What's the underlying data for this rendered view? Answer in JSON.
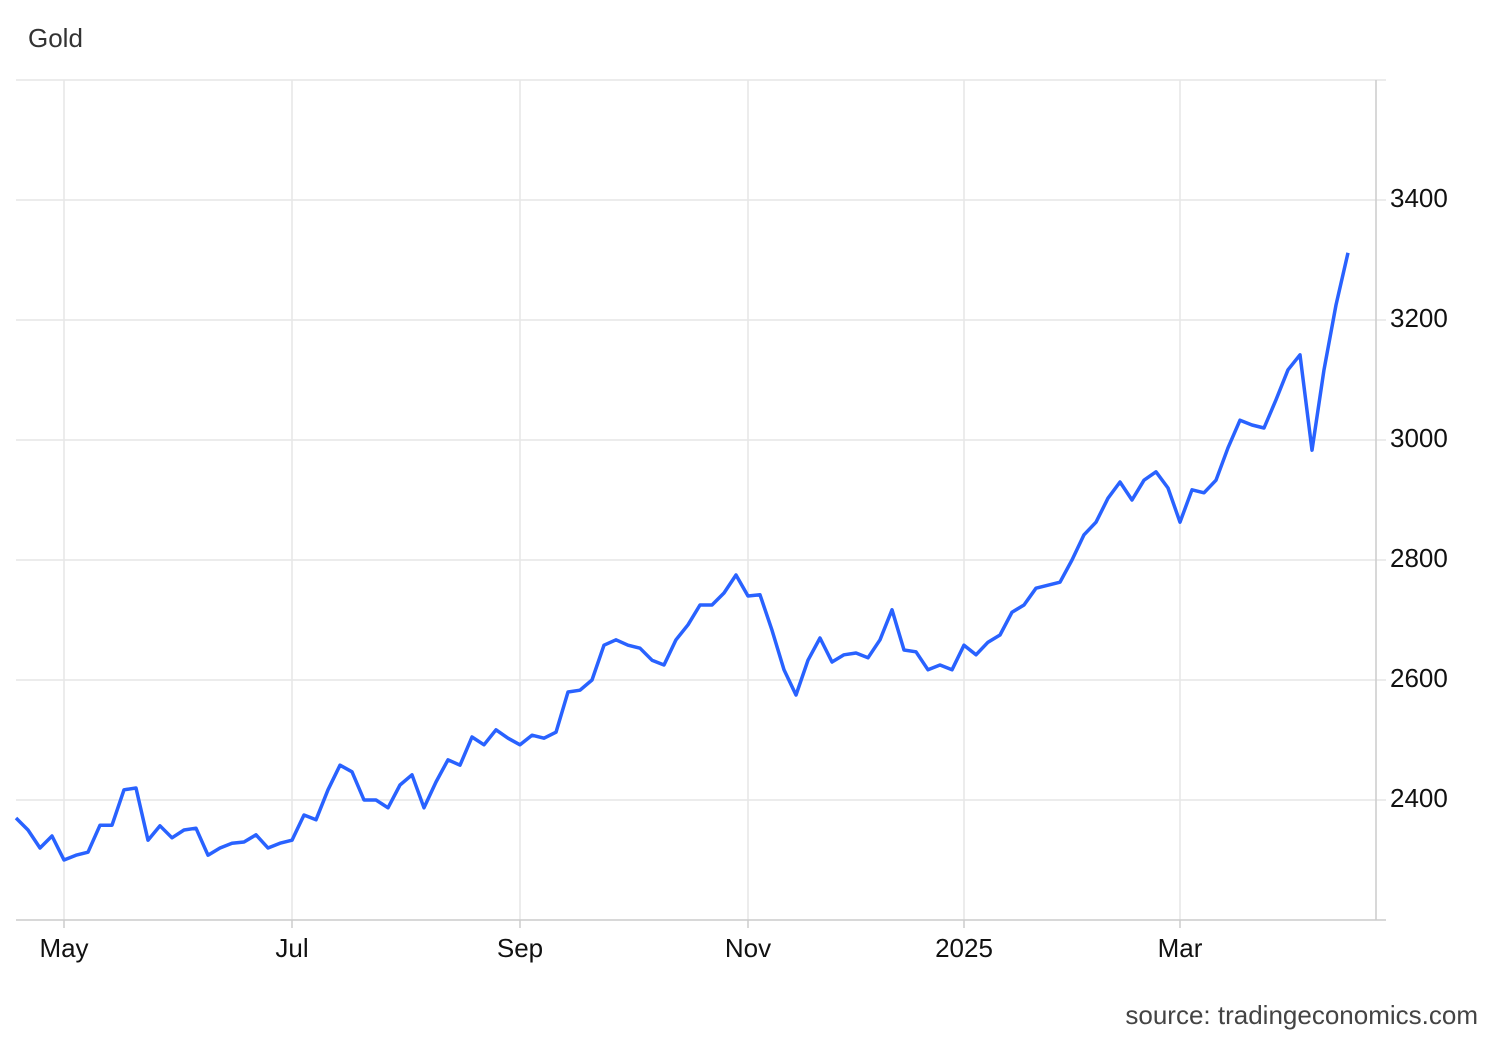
{
  "chart_data": {
    "type": "line",
    "title": "Gold",
    "source": "source: tradingeconomics.com",
    "categories": [
      null,
      null,
      null,
      null,
      "May",
      null,
      null,
      null,
      null,
      null,
      null,
      null,
      null,
      null,
      null,
      null,
      null,
      null,
      null,
      null,
      null,
      null,
      null,
      "Jul",
      null,
      null,
      null,
      null,
      null,
      null,
      null,
      null,
      null,
      null,
      null,
      null,
      null,
      null,
      null,
      null,
      null,
      null,
      "Sep",
      null,
      null,
      null,
      null,
      null,
      null,
      null,
      null,
      null,
      null,
      null,
      null,
      null,
      null,
      null,
      null,
      null,
      null,
      "Nov",
      null,
      null,
      null,
      null,
      null,
      null,
      null,
      null,
      null,
      null,
      null,
      null,
      null,
      null,
      null,
      null,
      null,
      "2025",
      null,
      null,
      null,
      null,
      null,
      null,
      null,
      null,
      null,
      null,
      null,
      null,
      null,
      null,
      null,
      null,
      null,
      "Mar",
      null,
      null,
      null,
      null,
      null,
      null,
      null,
      null,
      null,
      null,
      null,
      null,
      null,
      null
    ],
    "series": [
      {
        "name": "Gold",
        "color": "#2962ff",
        "values": [
          2370,
          2350,
          2320,
          2340,
          2300,
          2308,
          2313,
          2358,
          2358,
          2417,
          2420,
          2333,
          2357,
          2337,
          2350,
          2353,
          2308,
          2320,
          2328,
          2330,
          2342,
          2320,
          2328,
          2333,
          2375,
          2367,
          2417,
          2458,
          2447,
          2400,
          2400,
          2387,
          2425,
          2442,
          2387,
          2430,
          2467,
          2458,
          2505,
          2492,
          2517,
          2503,
          2492,
          2508,
          2503,
          2513,
          2580,
          2583,
          2600,
          2658,
          2667,
          2658,
          2653,
          2633,
          2625,
          2667,
          2692,
          2725,
          2725,
          2745,
          2775,
          2740,
          2742,
          2683,
          2617,
          2575,
          2633,
          2670,
          2630,
          2642,
          2645,
          2637,
          2667,
          2717,
          2650,
          2647,
          2617,
          2625,
          2617,
          2658,
          2642,
          2663,
          2675,
          2713,
          2725,
          2753,
          2758,
          2763,
          2800,
          2842,
          2863,
          2903,
          2930,
          2900,
          2933,
          2947,
          2920,
          2863,
          2917,
          2912,
          2933,
          2987,
          3033,
          3025,
          3020,
          3067,
          3117,
          3142,
          2983,
          3117,
          3225,
          3312
        ]
      }
    ],
    "ylim": [
      2200,
      3600
    ],
    "yticks": [
      2400,
      2600,
      2800,
      3000,
      3200,
      3400
    ],
    "grid": true
  }
}
